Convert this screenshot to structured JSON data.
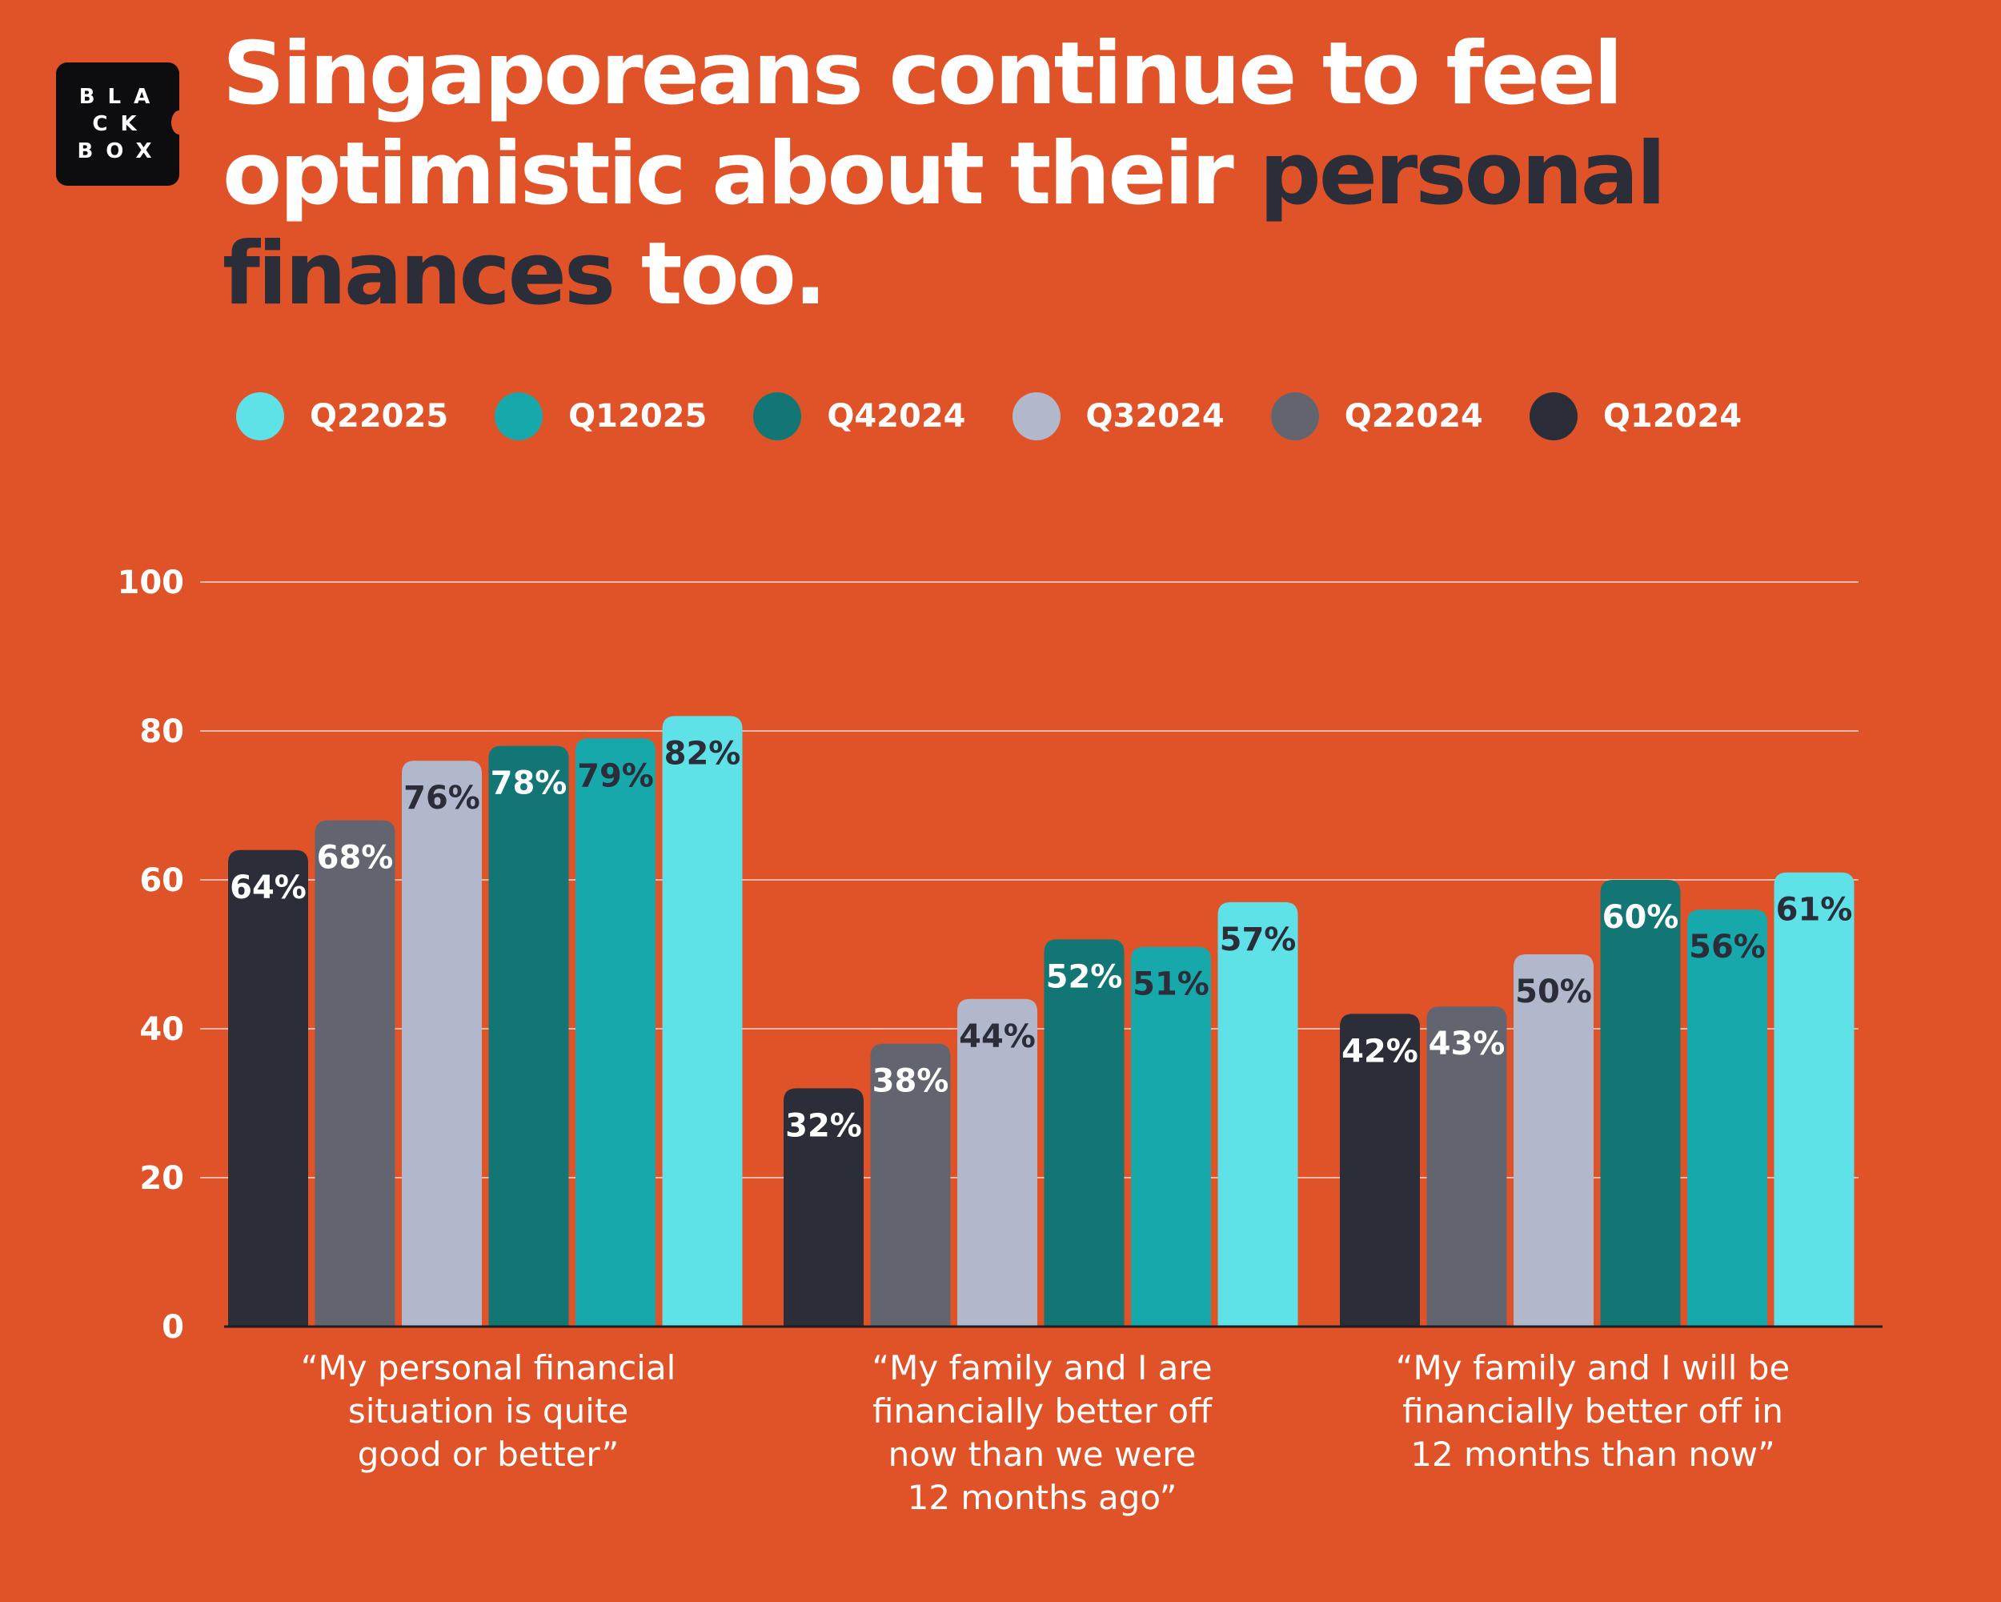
{
  "brand": {
    "logo_lines": [
      "BLA",
      "CK",
      "BOX"
    ]
  },
  "headline": {
    "part1": "Singaporeans continue to feel optimistic about their ",
    "highlight": "personal finances",
    "part2": " too."
  },
  "colors": {
    "background": "#E05329",
    "highlight_text": "#2B2D38",
    "gridline": "#F2B7A5",
    "axis_line": "#1E1E24"
  },
  "legend": [
    {
      "label": "Q22025",
      "color": "#5EE2E8"
    },
    {
      "label": "Q12025",
      "color": "#17A8AB"
    },
    {
      "label": "Q42024",
      "color": "#117674"
    },
    {
      "label": "Q32024",
      "color": "#B1B8CB"
    },
    {
      "label": "Q22024",
      "color": "#62646F"
    },
    {
      "label": "Q12024",
      "color": "#2B2D38"
    }
  ],
  "chart_data": {
    "type": "bar",
    "title": "",
    "xlabel": "",
    "ylabel": "",
    "ylim": [
      0,
      100
    ],
    "yticks": [
      0,
      20,
      40,
      60,
      80,
      100
    ],
    "grid": true,
    "legend_position": "top",
    "categories": [
      "“My personal financial situation is quite good or better”",
      "“My family and I are financially better off now than we were 12 months ago”",
      "“My family and I will be financially better off in 12 months than now”"
    ],
    "category_lines": [
      [
        "“My personal financial",
        "situation is quite",
        "good or better”"
      ],
      [
        "“My family and I are",
        "financially better off",
        "now than we were",
        "12 months ago”"
      ],
      [
        "“My family and I will be",
        "financially better off in",
        "12 months than now”"
      ]
    ],
    "series": [
      {
        "name": "Q12024",
        "color": "#2B2D38",
        "label_color": "#ffffff",
        "values": [
          64,
          32,
          42
        ],
        "labels": [
          "64%",
          "32%",
          "42%"
        ]
      },
      {
        "name": "Q22024",
        "color": "#62646F",
        "label_color": "#ffffff",
        "values": [
          68,
          38,
          43
        ],
        "labels": [
          "68%",
          "38%",
          "43%"
        ]
      },
      {
        "name": "Q32024",
        "color": "#B1B8CB",
        "label_color": "#2B2D38",
        "values": [
          76,
          44,
          50
        ],
        "labels": [
          "76%",
          "44%",
          "50%"
        ]
      },
      {
        "name": "Q42024",
        "color": "#117674",
        "label_color": "#ffffff",
        "values": [
          78,
          52,
          60
        ],
        "labels": [
          "78%",
          "52%",
          "60%"
        ]
      },
      {
        "name": "Q12025",
        "color": "#17A8AB",
        "label_color": "#2B2D38",
        "values": [
          79,
          51,
          56
        ],
        "labels": [
          "79%",
          "51%",
          "56%"
        ]
      },
      {
        "name": "Q22025",
        "color": "#5EE2E8",
        "label_color": "#2B2D38",
        "values": [
          82,
          57,
          61
        ],
        "labels": [
          "82%",
          "57%",
          "61%"
        ]
      }
    ]
  }
}
